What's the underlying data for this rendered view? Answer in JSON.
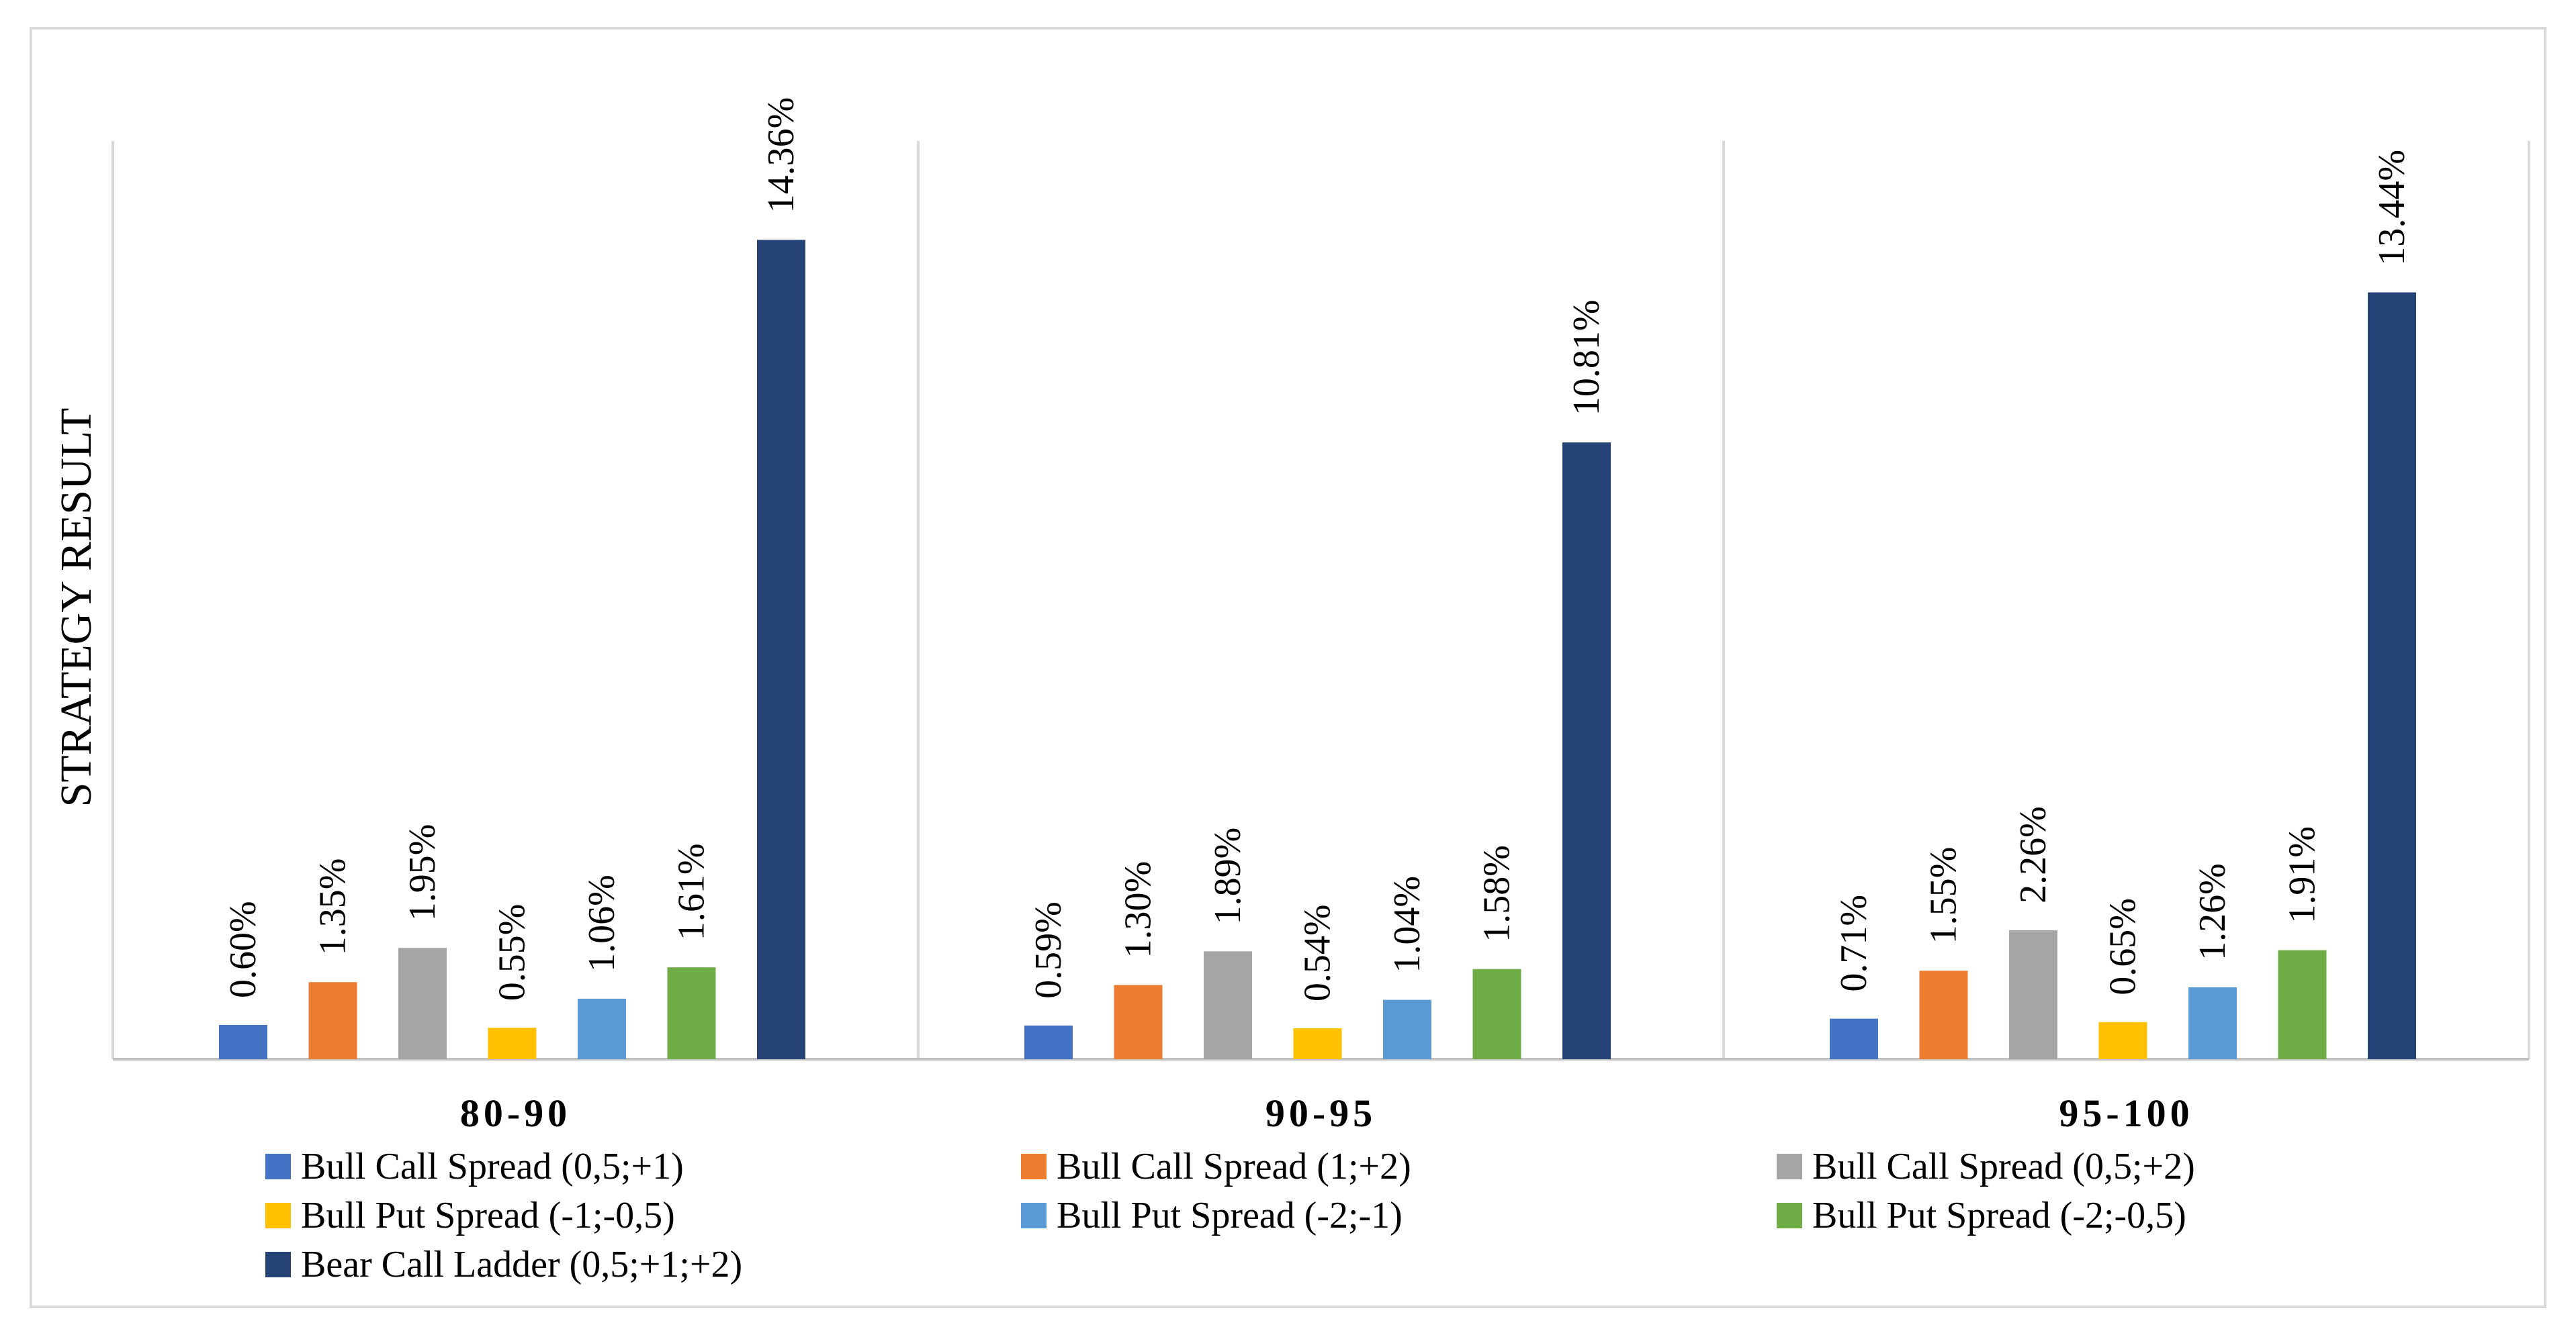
{
  "chart_data": {
    "type": "bar",
    "title": "",
    "xlabel": "",
    "ylabel": "STRATEGY RESULT",
    "ylim": [
      0,
      15.5
    ],
    "grid": false,
    "legend_position": "bottom",
    "categories": [
      "80-90",
      "90-95",
      "95-100"
    ],
    "series": [
      {
        "name": "Bull Call Spread (0,5;+1)",
        "color": "#4472C4",
        "values": [
          0.6,
          0.59,
          0.71
        ],
        "labels": [
          "0.60%",
          "0.59%",
          "0.71%"
        ]
      },
      {
        "name": "Bull Call Spread (1;+2)",
        "color": "#ED7D31",
        "values": [
          1.35,
          1.3,
          1.55
        ],
        "labels": [
          "1.35%",
          "1.30%",
          "1.55%"
        ]
      },
      {
        "name": "Bull Call Spread (0,5;+2)",
        "color": "#A5A5A5",
        "values": [
          1.95,
          1.89,
          2.26
        ],
        "labels": [
          "1.95%",
          "1.89%",
          "2.26%"
        ]
      },
      {
        "name": "Bull Put Spread (-1;-0,5)",
        "color": "#FFC000",
        "values": [
          0.55,
          0.54,
          0.65
        ],
        "labels": [
          "0.55%",
          "0.54%",
          "0.65%"
        ]
      },
      {
        "name": "Bull Put Spread (-2;-1)",
        "color": "#5B9BD5",
        "values": [
          1.06,
          1.04,
          1.26
        ],
        "labels": [
          "1.06%",
          "1.04%",
          "1.26%"
        ]
      },
      {
        "name": "Bull Put Spread (-2;-0,5)",
        "color": "#70AD47",
        "values": [
          1.61,
          1.58,
          1.91
        ],
        "labels": [
          "1.61%",
          "1.58%",
          "1.91%"
        ]
      },
      {
        "name": "Bear Call Ladder (0,5;+1;+2)",
        "color": "#264478",
        "values": [
          14.36,
          10.81,
          13.44
        ],
        "labels": [
          "14.36%",
          "10.81%",
          "13.44%"
        ]
      }
    ]
  }
}
